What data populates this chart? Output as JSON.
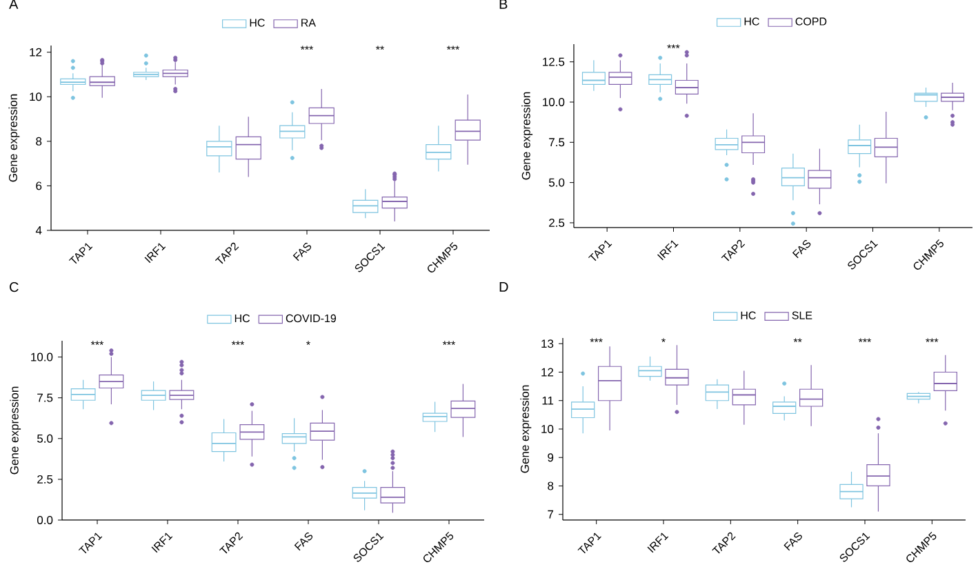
{
  "chart_data": [
    {
      "type": "box",
      "title": "A",
      "ylabel": "Gene expression",
      "categories": [
        "TAP1",
        "IRF1",
        "TAP2",
        "FAS",
        "SOCS1",
        "CHMP5"
      ],
      "ylim": [
        4,
        12.3
      ],
      "yticks": [
        4,
        6,
        8,
        10,
        12
      ],
      "legend": "top",
      "series": [
        {
          "name": "HC",
          "color": "#7ec4e0",
          "boxes": [
            {
              "low": 10.25,
              "q1": 10.55,
              "median": 10.65,
              "q3": 10.8,
              "high": 11.05,
              "outliers": [
                11.6,
                11.3,
                9.95
              ]
            },
            {
              "low": 10.75,
              "q1": 10.9,
              "median": 11.0,
              "q3": 11.1,
              "high": 11.3,
              "outliers": [
                11.5,
                11.85
              ]
            },
            {
              "low": 6.6,
              "q1": 7.35,
              "median": 7.75,
              "q3": 8.0,
              "high": 8.7
            },
            {
              "low": 7.6,
              "q1": 8.15,
              "median": 8.45,
              "q3": 8.7,
              "high": 9.3,
              "outliers": [
                9.75,
                7.25
              ]
            },
            {
              "low": 4.55,
              "q1": 4.8,
              "median": 5.1,
              "q3": 5.35,
              "high": 5.85
            },
            {
              "low": 6.65,
              "q1": 7.2,
              "median": 7.5,
              "q3": 7.85,
              "high": 8.7
            }
          ]
        },
        {
          "name": "RA",
          "color": "#8465ae",
          "boxes": [
            {
              "low": 9.95,
              "q1": 10.5,
              "median": 10.65,
              "q3": 10.9,
              "high": 11.4,
              "outliers": [
                11.5,
                11.6,
                11.65
              ]
            },
            {
              "low": 10.55,
              "q1": 10.9,
              "median": 11.05,
              "q3": 11.2,
              "high": 11.55,
              "outliers": [
                11.65,
                11.75,
                10.35,
                10.25
              ]
            },
            {
              "low": 6.4,
              "q1": 7.2,
              "median": 7.85,
              "q3": 8.2,
              "high": 9.1
            },
            {
              "low": 8.05,
              "q1": 8.8,
              "median": 9.15,
              "q3": 9.5,
              "high": 10.35,
              "outliers": [
                7.7,
                7.8
              ]
            },
            {
              "low": 4.4,
              "q1": 5.0,
              "median": 5.3,
              "q3": 5.5,
              "high": 6.2,
              "outliers": [
                6.3,
                6.4,
                6.5,
                6.55
              ]
            },
            {
              "low": 6.95,
              "q1": 8.05,
              "median": 8.45,
              "q3": 8.95,
              "high": 10.1
            }
          ]
        }
      ],
      "annotations": [
        "***",
        "**",
        "***"
      ]
    },
    {
      "type": "box",
      "title": "B",
      "ylabel": "Gene expression",
      "categories": [
        "TAP1",
        "IRF1",
        "TAP2",
        "FAS",
        "SOCS1",
        "CHMP5"
      ],
      "ylim": [
        2.2,
        13.6
      ],
      "yticks": [
        2.5,
        {
          "value": 5,
          "label": "5.0"
        },
        7.5,
        {
          "value": 10,
          "label": "10.0"
        },
        12.5
      ],
      "legend": "top",
      "series": [
        {
          "name": "HC",
          "color": "#7ec4e0",
          "boxes": [
            {
              "low": 10.7,
              "q1": 11.1,
              "median": 11.35,
              "q3": 11.85,
              "high": 12.6
            },
            {
              "low": 10.6,
              "q1": 11.1,
              "median": 11.4,
              "q3": 11.7,
              "high": 12.4,
              "outliers": [
                12.75,
                10.2
              ]
            },
            {
              "low": 6.7,
              "q1": 7.05,
              "median": 7.35,
              "q3": 7.75,
              "high": 8.3,
              "outliers": [
                6.1,
                5.2
              ]
            },
            {
              "low": 3.9,
              "q1": 4.8,
              "median": 5.3,
              "q3": 5.9,
              "high": 6.8,
              "outliers": [
                3.1,
                2.45
              ]
            },
            {
              "low": 5.95,
              "q1": 6.8,
              "median": 7.3,
              "q3": 7.65,
              "high": 8.6,
              "outliers": [
                5.45,
                5.05
              ]
            },
            {
              "low": 9.7,
              "q1": 10.05,
              "median": 10.45,
              "q3": 10.55,
              "high": 10.9,
              "outliers": [
                9.05
              ]
            }
          ]
        },
        {
          "name": "COPD",
          "color": "#8465ae",
          "boxes": [
            {
              "low": 10.25,
              "q1": 11.1,
              "median": 11.55,
              "q3": 11.85,
              "high": 12.6,
              "outliers": [
                12.9,
                9.55
              ]
            },
            {
              "low": 9.9,
              "q1": 10.5,
              "median": 10.9,
              "q3": 11.35,
              "high": 12.4,
              "outliers": [
                12.9,
                13.1,
                9.15
              ]
            },
            {
              "low": 6.1,
              "q1": 6.85,
              "median": 7.5,
              "q3": 7.9,
              "high": 9.3,
              "outliers": [
                5.2,
                5.1,
                5.0,
                4.3
              ]
            },
            {
              "low": 3.65,
              "q1": 4.65,
              "median": 5.3,
              "q3": 5.75,
              "high": 7.1,
              "outliers": [
                3.1
              ]
            },
            {
              "low": 4.95,
              "q1": 6.6,
              "median": 7.2,
              "q3": 7.75,
              "high": 9.4
            },
            {
              "low": 9.5,
              "q1": 10.05,
              "median": 10.3,
              "q3": 10.55,
              "high": 11.2,
              "outliers": [
                9.15,
                8.75,
                8.6
              ]
            }
          ]
        }
      ],
      "annotations": [
        "***"
      ]
    },
    {
      "type": "box",
      "title": "C",
      "ylabel": "Gene expression",
      "categories": [
        "TAP1",
        "IRF1",
        "TAP2",
        "FAS",
        "SOCS1",
        "CHMP5"
      ],
      "ylim": [
        0,
        11
      ],
      "yticks": [
        {
          "value": 0,
          "label": "0.0"
        },
        2.5,
        {
          "value": 5,
          "label": "5.0"
        },
        7.5,
        {
          "value": 10,
          "label": "10.0"
        }
      ],
      "legend": "top",
      "series": [
        {
          "name": "HC",
          "color": "#7ec4e0",
          "boxes": [
            {
              "low": 6.8,
              "q1": 7.35,
              "median": 7.7,
              "q3": 8.05,
              "high": 8.6
            },
            {
              "low": 6.75,
              "q1": 7.35,
              "median": 7.65,
              "q3": 7.95,
              "high": 8.5
            },
            {
              "low": 3.6,
              "q1": 4.2,
              "median": 4.7,
              "q3": 5.35,
              "high": 6.2
            },
            {
              "low": 4.2,
              "q1": 4.7,
              "median": 5.1,
              "q3": 5.3,
              "high": 6.25,
              "outliers": [
                3.8,
                3.2
              ]
            },
            {
              "low": 0.6,
              "q1": 1.35,
              "median": 1.65,
              "q3": 2.0,
              "high": 2.4,
              "outliers": [
                3.0
              ]
            },
            {
              "low": 5.4,
              "q1": 6.05,
              "median": 6.35,
              "q3": 6.55,
              "high": 7.25
            }
          ]
        },
        {
          "name": "COVID-19",
          "color": "#8465ae",
          "boxes": [
            {
              "low": 7.1,
              "q1": 8.1,
              "median": 8.5,
              "q3": 8.9,
              "high": 10.0,
              "outliers": [
                10.2,
                10.4,
                5.95
              ]
            },
            {
              "low": 6.8,
              "q1": 7.4,
              "median": 7.65,
              "q3": 7.95,
              "high": 8.6,
              "outliers": [
                9.0,
                9.2,
                9.5,
                9.7,
                6.4,
                6.0
              ]
            },
            {
              "low": 3.9,
              "q1": 4.95,
              "median": 5.4,
              "q3": 5.85,
              "high": 6.7,
              "outliers": [
                7.1,
                3.4
              ]
            },
            {
              "low": 3.7,
              "q1": 4.9,
              "median": 5.45,
              "q3": 5.95,
              "high": 6.75,
              "outliers": [
                7.55,
                3.25
              ]
            },
            {
              "low": 0.45,
              "q1": 1.05,
              "median": 1.4,
              "q3": 2.0,
              "high": 3.0,
              "outliers": [
                3.2,
                3.5,
                3.8,
                4.0,
                4.2
              ]
            },
            {
              "low": 5.1,
              "q1": 6.3,
              "median": 6.85,
              "q3": 7.3,
              "high": 8.35
            }
          ]
        }
      ],
      "annotations": [
        "***",
        "***",
        "*",
        "***"
      ]
    },
    {
      "type": "box",
      "title": "D",
      "ylabel": "Gene expression",
      "categories": [
        "TAP1",
        "IRF1",
        "TAP2",
        "FAS",
        "SOCS1",
        "CHMP5"
      ],
      "ylim": [
        6.8,
        13.2
      ],
      "yticks": [
        7,
        8,
        9,
        10,
        11,
        12,
        13
      ],
      "legend": "top",
      "series": [
        {
          "name": "HC",
          "color": "#7ec4e0",
          "boxes": [
            {
              "low": 9.85,
              "q1": 10.4,
              "median": 10.7,
              "q3": 10.95,
              "high": 11.5,
              "outliers": [
                11.95
              ]
            },
            {
              "low": 11.7,
              "q1": 11.85,
              "median": 12.05,
              "q3": 12.2,
              "high": 12.55
            },
            {
              "low": 10.7,
              "q1": 11.0,
              "median": 11.3,
              "q3": 11.55,
              "high": 11.75
            },
            {
              "low": 10.3,
              "q1": 10.55,
              "median": 10.8,
              "q3": 10.95,
              "high": 11.15,
              "outliers": [
                11.6
              ]
            },
            {
              "low": 7.25,
              "q1": 7.55,
              "median": 7.8,
              "q3": 8.05,
              "high": 8.5
            },
            {
              "low": 10.9,
              "q1": 11.05,
              "median": 11.15,
              "q3": 11.25,
              "high": 11.3
            }
          ]
        },
        {
          "name": "SLE",
          "color": "#8465ae",
          "boxes": [
            {
              "low": 9.95,
              "q1": 11.0,
              "median": 11.7,
              "q3": 12.2,
              "high": 12.9
            },
            {
              "low": 10.85,
              "q1": 11.55,
              "median": 11.8,
              "q3": 12.1,
              "high": 12.95,
              "outliers": [
                10.6
              ]
            },
            {
              "low": 10.15,
              "q1": 10.85,
              "median": 11.2,
              "q3": 11.4,
              "high": 12.05
            },
            {
              "low": 10.1,
              "q1": 10.8,
              "median": 11.05,
              "q3": 11.4,
              "high": 12.25
            },
            {
              "low": 7.1,
              "q1": 8.0,
              "median": 8.35,
              "q3": 8.75,
              "high": 9.85,
              "outliers": [
                10.05,
                10.35
              ]
            },
            {
              "low": 10.65,
              "q1": 11.35,
              "median": 11.6,
              "q3": 12.0,
              "high": 12.6,
              "outliers": [
                10.2
              ]
            }
          ]
        }
      ],
      "annotations": [
        "***",
        "*",
        "**",
        "***",
        "***"
      ]
    }
  ]
}
